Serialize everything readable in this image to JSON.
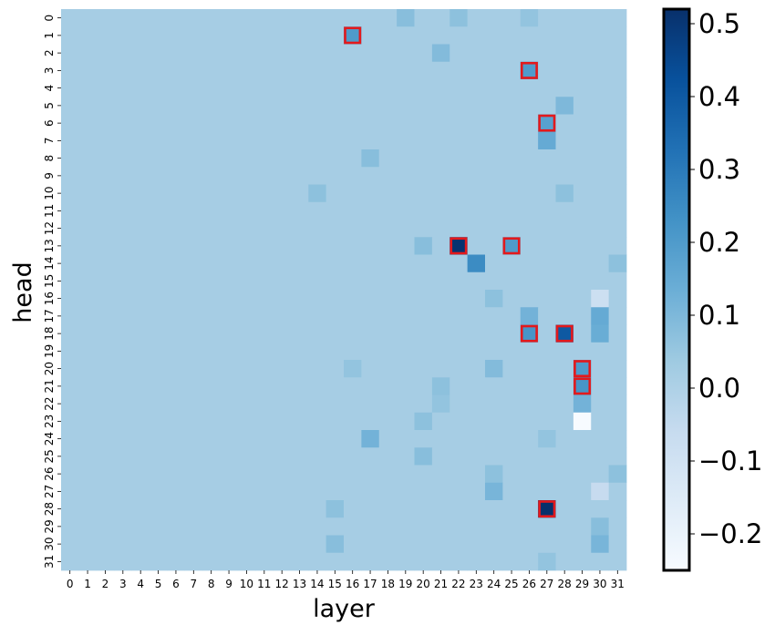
{
  "chart_data": {
    "type": "heatmap",
    "xlabel": "layer",
    "ylabel": "head",
    "x_categories": [
      "0",
      "1",
      "2",
      "3",
      "4",
      "5",
      "6",
      "7",
      "8",
      "9",
      "10",
      "11",
      "12",
      "13",
      "14",
      "15",
      "16",
      "17",
      "18",
      "19",
      "20",
      "21",
      "22",
      "23",
      "24",
      "25",
      "26",
      "27",
      "28",
      "29",
      "30",
      "31"
    ],
    "y_categories": [
      "0",
      "1",
      "2",
      "3",
      "4",
      "5",
      "6",
      "7",
      "8",
      "9",
      "10",
      "11",
      "12",
      "13",
      "14",
      "15",
      "16",
      "17",
      "18",
      "19",
      "20",
      "21",
      "22",
      "23",
      "24",
      "25",
      "26",
      "27",
      "28",
      "29",
      "30",
      "31"
    ],
    "value_range": [
      -0.25,
      0.52
    ],
    "background_value": 0.02,
    "colormap": "Blues",
    "colorbar_ticks": [
      "−0.2",
      "−0.1",
      "0.0",
      "0.1",
      "0.2",
      "0.3",
      "0.4",
      "0.5"
    ],
    "colorbar_tick_values": [
      -0.2,
      -0.1,
      0.0,
      0.1,
      0.2,
      0.3,
      0.4,
      0.5
    ],
    "notable_cells": [
      {
        "layer": 16,
        "head": 1,
        "value": 0.2
      },
      {
        "layer": 19,
        "head": 0,
        "value": 0.08
      },
      {
        "layer": 22,
        "head": 0,
        "value": 0.07
      },
      {
        "layer": 26,
        "head": 0,
        "value": 0.06
      },
      {
        "layer": 21,
        "head": 2,
        "value": 0.09
      },
      {
        "layer": 26,
        "head": 3,
        "value": 0.2
      },
      {
        "layer": 28,
        "head": 5,
        "value": 0.1
      },
      {
        "layer": 27,
        "head": 6,
        "value": 0.18
      },
      {
        "layer": 27,
        "head": 7,
        "value": 0.15
      },
      {
        "layer": 17,
        "head": 8,
        "value": 0.08
      },
      {
        "layer": 28,
        "head": 10,
        "value": 0.07
      },
      {
        "layer": 14,
        "head": 10,
        "value": 0.07
      },
      {
        "layer": 22,
        "head": 13,
        "value": 0.51
      },
      {
        "layer": 25,
        "head": 13,
        "value": 0.2
      },
      {
        "layer": 20,
        "head": 13,
        "value": 0.08
      },
      {
        "layer": 23,
        "head": 14,
        "value": 0.25
      },
      {
        "layer": 31,
        "head": 14,
        "value": 0.07
      },
      {
        "layer": 24,
        "head": 16,
        "value": 0.07
      },
      {
        "layer": 30,
        "head": 16,
        "value": -0.08
      },
      {
        "layer": 26,
        "head": 17,
        "value": 0.12
      },
      {
        "layer": 30,
        "head": 17,
        "value": 0.15
      },
      {
        "layer": 30,
        "head": 18,
        "value": 0.14
      },
      {
        "layer": 26,
        "head": 18,
        "value": 0.22
      },
      {
        "layer": 28,
        "head": 18,
        "value": 0.4
      },
      {
        "layer": 24,
        "head": 20,
        "value": 0.09
      },
      {
        "layer": 16,
        "head": 20,
        "value": 0.06
      },
      {
        "layer": 29,
        "head": 20,
        "value": 0.2
      },
      {
        "layer": 29,
        "head": 21,
        "value": 0.22
      },
      {
        "layer": 21,
        "head": 21,
        "value": 0.07
      },
      {
        "layer": 21,
        "head": 22,
        "value": 0.06
      },
      {
        "layer": 29,
        "head": 22,
        "value": 0.12
      },
      {
        "layer": 29,
        "head": 23,
        "value": -0.25
      },
      {
        "layer": 20,
        "head": 23,
        "value": 0.07
      },
      {
        "layer": 17,
        "head": 24,
        "value": 0.12
      },
      {
        "layer": 27,
        "head": 24,
        "value": 0.06
      },
      {
        "layer": 20,
        "head": 25,
        "value": 0.08
      },
      {
        "layer": 24,
        "head": 26,
        "value": 0.07
      },
      {
        "layer": 31,
        "head": 26,
        "value": 0.07
      },
      {
        "layer": 24,
        "head": 27,
        "value": 0.11
      },
      {
        "layer": 30,
        "head": 27,
        "value": -0.06
      },
      {
        "layer": 15,
        "head": 28,
        "value": 0.07
      },
      {
        "layer": 27,
        "head": 28,
        "value": 0.52
      },
      {
        "layer": 30,
        "head": 29,
        "value": 0.08
      },
      {
        "layer": 30,
        "head": 30,
        "value": 0.11
      },
      {
        "layer": 15,
        "head": 30,
        "value": 0.08
      },
      {
        "layer": 27,
        "head": 31,
        "value": 0.06
      }
    ],
    "highlighted_cells": [
      {
        "layer": 16,
        "head": 1
      },
      {
        "layer": 26,
        "head": 3
      },
      {
        "layer": 27,
        "head": 6
      },
      {
        "layer": 22,
        "head": 13
      },
      {
        "layer": 25,
        "head": 13
      },
      {
        "layer": 26,
        "head": 18
      },
      {
        "layer": 28,
        "head": 18
      },
      {
        "layer": 29,
        "head": 20
      },
      {
        "layer": 29,
        "head": 21
      },
      {
        "layer": 27,
        "head": 28
      }
    ],
    "highlight_color": "#e3191c"
  }
}
